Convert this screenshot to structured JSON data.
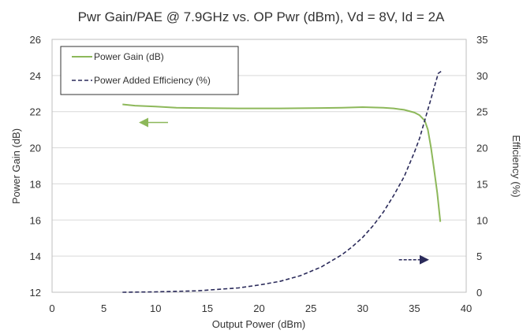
{
  "chart_data": {
    "type": "line",
    "title": "Pwr Gain/PAE @ 7.9GHz vs. OP Pwr (dBm), Vd = 8V, Id = 2A",
    "xlabel": "Output Power (dBm)",
    "ylabel": "Power Gain (dB)",
    "y2label": "Efficiency (%)",
    "xlim": [
      0,
      40
    ],
    "ylim": [
      12,
      26
    ],
    "y2lim": [
      0,
      35
    ],
    "xticks": [
      "0",
      "5",
      "10",
      "15",
      "20",
      "25",
      "30",
      "35",
      "40"
    ],
    "yticks": [
      "12",
      "14",
      "16",
      "18",
      "20",
      "22",
      "24",
      "26"
    ],
    "y2ticks": [
      "0",
      "5",
      "10",
      "15",
      "20",
      "25",
      "30",
      "35"
    ],
    "grid": "horizontal",
    "legend_position": "top-left",
    "series": [
      {
        "name": "Power Gain (dB)",
        "axis": "left",
        "color": "#8db85a",
        "style": "solid",
        "x": [
          6.8,
          8,
          10,
          12,
          14,
          16,
          18,
          20,
          22,
          24,
          26,
          28,
          30,
          32,
          33,
          34,
          35,
          35.5,
          36,
          36.3,
          36.6,
          36.9,
          37.2,
          37.5
        ],
        "values": [
          22.4,
          22.33,
          22.28,
          22.22,
          22.2,
          22.19,
          22.18,
          22.18,
          22.18,
          22.19,
          22.2,
          22.22,
          22.25,
          22.22,
          22.18,
          22.1,
          21.95,
          21.8,
          21.5,
          21.0,
          20.0,
          18.8,
          17.5,
          15.9
        ]
      },
      {
        "name": "Power Added Efficiency (%)",
        "axis": "right",
        "color": "#2a2a5a",
        "style": "dashed",
        "x": [
          6.8,
          10,
          14,
          18,
          20,
          22,
          24,
          26,
          28,
          29,
          30,
          31,
          32,
          33,
          34,
          35,
          35.5,
          36,
          36.5,
          37,
          37.3,
          37.6
        ],
        "values": [
          0,
          0.05,
          0.2,
          0.6,
          1.0,
          1.5,
          2.3,
          3.5,
          5.2,
          6.3,
          7.6,
          9.2,
          11.1,
          13.4,
          16.0,
          19.4,
          21.3,
          23.8,
          26.3,
          28.8,
          30.3,
          30.6
        ]
      }
    ],
    "annotations": [
      {
        "type": "arrow",
        "direction": "left",
        "series": "Power Gain (dB)",
        "x_from": 11.2,
        "x_to": 8.5,
        "y": 21.4
      },
      {
        "type": "arrow",
        "direction": "right",
        "series": "Power Added Efficiency (%)",
        "x_from": 33.5,
        "x_to": 36.3,
        "y2": 4.5
      }
    ]
  }
}
